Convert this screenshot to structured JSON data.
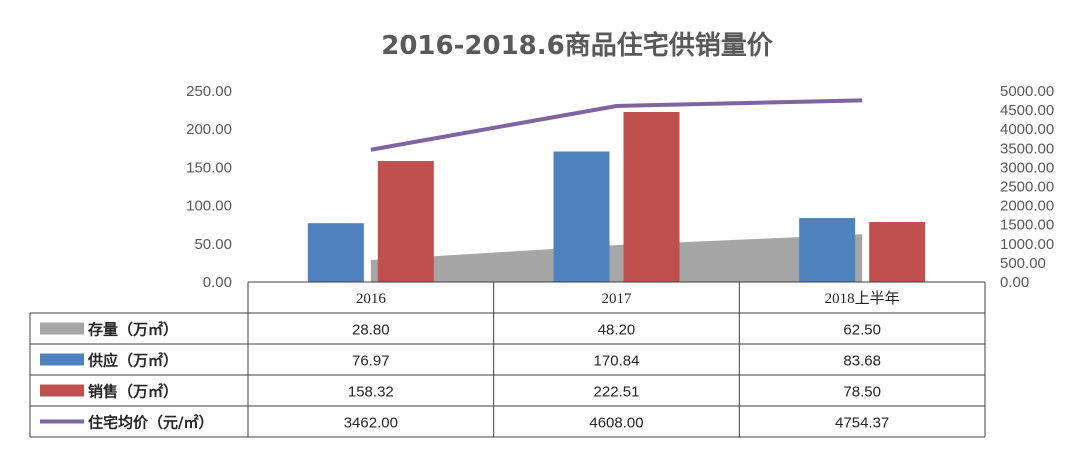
{
  "chart_data": {
    "type": "bar",
    "title": "2016-2018.6商品住宅供销量价",
    "categories": [
      "2016",
      "2017",
      "2018上半年"
    ],
    "y_left": {
      "ylim": [
        0,
        250
      ],
      "ticks": [
        "0.00",
        "50.00",
        "100.00",
        "150.00",
        "200.00",
        "250.00"
      ]
    },
    "y_right": {
      "ylim": [
        0,
        5000
      ],
      "ticks": [
        "0.00",
        "500.00",
        "1000.00",
        "1500.00",
        "2000.00",
        "2500.00",
        "3000.00",
        "3500.00",
        "4000.00",
        "4500.00",
        "5000.00"
      ]
    },
    "grid": false,
    "legend": "data-table",
    "series": [
      {
        "name": "存量（万㎡）",
        "kind": "area",
        "axis": "left",
        "color": "#A6A6A6",
        "values": [
          28.8,
          48.2,
          62.5
        ],
        "labels": [
          "28.80",
          "48.20",
          "62.50"
        ]
      },
      {
        "name": "供应（万㎡）",
        "kind": "bar",
        "axis": "left",
        "color": "#4F81BD",
        "values": [
          76.97,
          170.84,
          83.68
        ],
        "labels": [
          "76.97",
          "170.84",
          "83.68"
        ]
      },
      {
        "name": "销售（万㎡）",
        "kind": "bar",
        "axis": "left",
        "color": "#C0504D",
        "values": [
          158.32,
          222.51,
          78.5
        ],
        "labels": [
          "158.32",
          "222.51",
          "78.50"
        ]
      },
      {
        "name": "住宅均价（元/㎡）",
        "kind": "line",
        "axis": "right",
        "color": "#8064A2",
        "values": [
          3462.0,
          4608.0,
          4754.37
        ],
        "labels": [
          "3462.00",
          "4608.00",
          "4754.37"
        ]
      }
    ]
  }
}
